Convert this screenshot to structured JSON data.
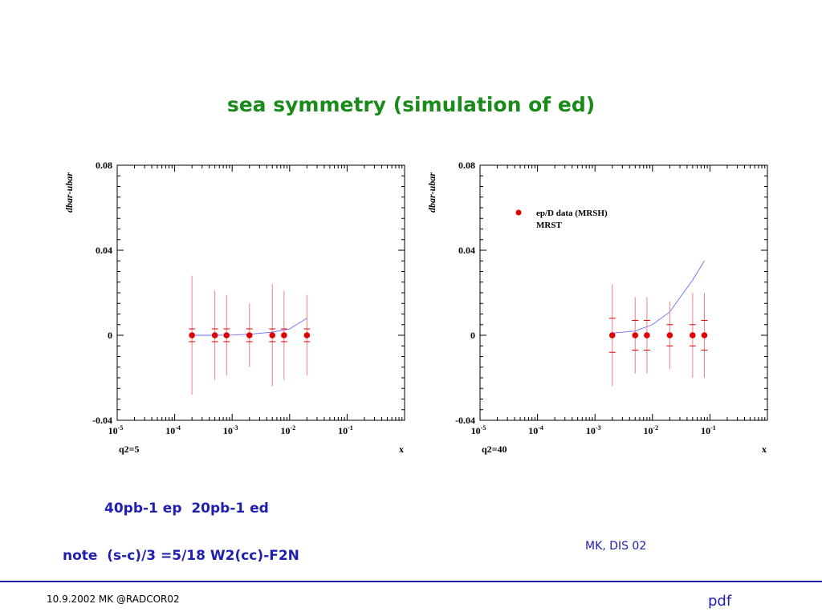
{
  "slide": {
    "title": "sea symmetry (simulation of ed)",
    "lumi_note": "40pb-1 ep  20pb-1 ed",
    "formula_note": "note  (s-c)/3 =5/18 W2(cc)-F2N",
    "credit": "MK, DIS 02",
    "footer_left": "10.9.2002 MK @RADCOR02",
    "footer_right": "pdf"
  },
  "colors": {
    "title": "#1a8a1a",
    "text_blue": "#2020b0",
    "data_points": "#e00000",
    "mrst_line": "#6a6aff",
    "footer_rule": "#2020a0"
  },
  "chart_data": [
    {
      "type": "scatter",
      "x_scale": "log",
      "xlim": [
        1e-05,
        1
      ],
      "ylim": [
        -0.04,
        0.08
      ],
      "ylabel": "dbar-ubar",
      "xlabel": "x",
      "panel_label": "q2=5",
      "y_ticks": [
        "0.08",
        "0.04",
        "0",
        "-0.04"
      ],
      "x_ticks": [
        {
          "base": "10",
          "exp": "-5"
        },
        {
          "base": "10",
          "exp": "-4"
        },
        {
          "base": "10",
          "exp": "-3"
        },
        {
          "base": "10",
          "exp": "-2"
        },
        {
          "base": "10",
          "exp": "-1"
        }
      ],
      "series": [
        {
          "kind": "points",
          "x": [
            0.0002,
            0.0005,
            0.0008,
            0.002,
            0.005,
            0.008,
            0.02
          ],
          "y": [
            0,
            0,
            0,
            0,
            0,
            0,
            0
          ],
          "err_outer": [
            0.028,
            0.021,
            0.019,
            0.015,
            0.024,
            0.021,
            0.019
          ],
          "err_inner": [
            0.003,
            0.003,
            0.003,
            0.003,
            0.003,
            0.003,
            0.003
          ]
        },
        {
          "kind": "line",
          "x": [
            0.0002,
            0.0005,
            0.001,
            0.002,
            0.005,
            0.01,
            0.02
          ],
          "y": [
            0,
            0,
            0.0001,
            0.0005,
            0.0015,
            0.003,
            0.008
          ]
        }
      ]
    },
    {
      "type": "scatter",
      "x_scale": "log",
      "xlim": [
        1e-05,
        1
      ],
      "ylim": [
        -0.04,
        0.08
      ],
      "ylabel": "dbar-ubar",
      "xlabel": "x",
      "panel_label": "q2=40",
      "y_ticks": [
        "0.08",
        "0.04",
        "0",
        "-0.04"
      ],
      "x_ticks": [
        {
          "base": "10",
          "exp": "-5"
        },
        {
          "base": "10",
          "exp": "-4"
        },
        {
          "base": "10",
          "exp": "-3"
        },
        {
          "base": "10",
          "exp": "-2"
        },
        {
          "base": "10",
          "exp": "-1"
        }
      ],
      "legend": [
        {
          "label": "ep/D data (MRSH)",
          "marker": "dot"
        },
        {
          "label": "MRST",
          "marker": "none"
        }
      ],
      "legend_position": "upper-left",
      "series": [
        {
          "kind": "points",
          "x": [
            0.002,
            0.005,
            0.008,
            0.02,
            0.05,
            0.08
          ],
          "y": [
            0,
            0,
            0,
            0,
            0,
            0
          ],
          "err_outer": [
            0.024,
            0.018,
            0.018,
            0.016,
            0.02,
            0.02
          ],
          "err_inner": [
            0.008,
            0.007,
            0.007,
            0.005,
            0.005,
            0.007
          ]
        },
        {
          "kind": "line",
          "x": [
            0.002,
            0.005,
            0.01,
            0.02,
            0.05,
            0.08
          ],
          "y": [
            0.001,
            0.002,
            0.005,
            0.011,
            0.026,
            0.035
          ]
        }
      ]
    }
  ]
}
